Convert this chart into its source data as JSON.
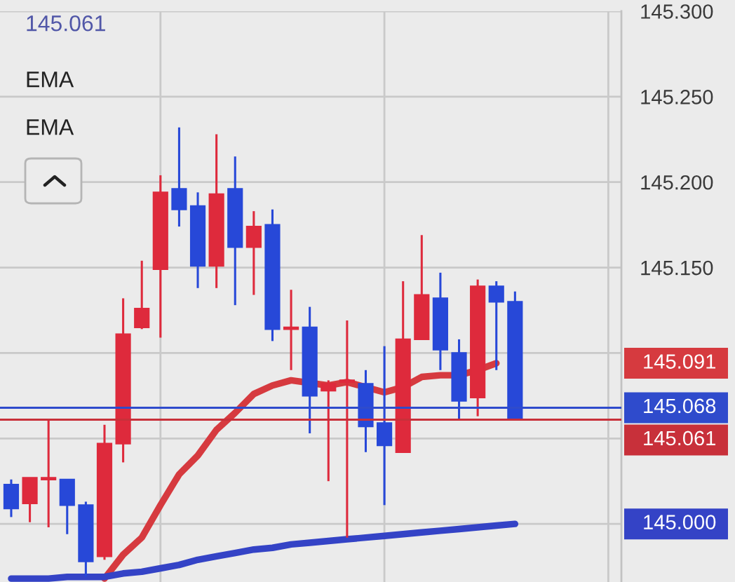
{
  "chart_data": {
    "type": "candlestick",
    "categories": [
      null,
      null,
      null,
      null,
      null,
      null,
      null,
      null,
      null,
      null,
      null,
      null,
      null,
      null,
      null,
      null,
      null,
      null,
      null,
      null,
      null,
      null,
      null,
      null,
      null,
      null,
      null,
      null
    ],
    "ohlc": [
      [
        145.023,
        145.026,
        145.004,
        145.009
      ],
      [
        145.012,
        145.027,
        145.001,
        145.027
      ],
      [
        145.026,
        145.061,
        144.998,
        145.027
      ],
      [
        145.026,
        145.026,
        144.994,
        145.011
      ],
      [
        145.011,
        145.013,
        144.969,
        144.978
      ],
      [
        144.981,
        145.058,
        144.979,
        145.047
      ],
      [
        145.047,
        145.132,
        145.036,
        145.111
      ],
      [
        145.115,
        145.154,
        145.114,
        145.126
      ],
      [
        145.149,
        145.204,
        145.109,
        145.194
      ],
      [
        145.196,
        145.232,
        145.174,
        145.184
      ],
      [
        145.186,
        145.194,
        145.138,
        145.151
      ],
      [
        145.151,
        145.228,
        145.138,
        145.193
      ],
      [
        145.196,
        145.215,
        145.128,
        145.162
      ],
      [
        145.162,
        145.183,
        145.134,
        145.174
      ],
      [
        145.175,
        145.184,
        145.107,
        145.114
      ],
      [
        145.114,
        145.137,
        145.09,
        145.115
      ],
      [
        145.115,
        145.127,
        145.053,
        145.075
      ],
      [
        145.078,
        145.084,
        145.025,
        145.082
      ],
      [
        145.083,
        145.119,
        144.992,
        145.084
      ],
      [
        145.082,
        145.09,
        145.042,
        145.057
      ],
      [
        145.059,
        145.104,
        145.011,
        145.046
      ],
      [
        145.042,
        145.142,
        145.042,
        145.108
      ],
      [
        145.108,
        145.169,
        145.108,
        145.134
      ],
      [
        145.132,
        145.147,
        145.09,
        145.102
      ],
      [
        145.1,
        145.108,
        145.061,
        145.072
      ],
      [
        145.074,
        145.143,
        145.063,
        145.139
      ],
      [
        145.139,
        145.142,
        145.09,
        145.13
      ],
      [
        145.13,
        145.136,
        145.061,
        145.061
      ]
    ],
    "colors": [
      "#2748d8",
      "#de2a3c",
      "#de2a3c",
      "#2748d8",
      "#2748d8",
      "#de2a3c",
      "#de2a3c",
      "#de2a3c",
      "#de2a3c",
      "#2748d8",
      "#2748d8",
      "#de2a3c",
      "#2748d8",
      "#de2a3c",
      "#2748d8",
      "#de2a3c",
      "#2748d8",
      "#de2a3c",
      "#de2a3c",
      "#2748d8",
      "#2748d8",
      "#de2a3c",
      "#de2a3c",
      "#2748d8",
      "#2748d8",
      "#de2a3c",
      "#2748d8",
      "#2748d8"
    ],
    "series": [
      {
        "type": "line",
        "color": "#d63a3f",
        "values": [
          null,
          null,
          null,
          null,
          null,
          144.968,
          144.982,
          144.992,
          145.011,
          145.029,
          145.04,
          145.055,
          145.065,
          145.076,
          145.081,
          145.084,
          null,
          145.081,
          145.083,
          null,
          145.077,
          145.08,
          145.086,
          145.087,
          145.087,
          145.09,
          145.094,
          null
        ]
      },
      {
        "type": "line",
        "color": "#3443c6",
        "values": [
          144.968,
          144.968,
          144.968,
          144.969,
          144.969,
          144.969,
          144.971,
          144.972,
          144.974,
          144.976,
          144.979,
          144.981,
          144.983,
          144.985,
          144.986,
          144.988,
          144.989,
          144.99,
          144.991,
          144.992,
          144.993,
          144.994,
          144.995,
          144.996,
          144.997,
          144.998,
          144.999,
          145.0
        ]
      }
    ],
    "ylim": [
      144.966,
      145.3
    ],
    "yticks": [
      {
        "value": 145.0,
        "label": null
      },
      {
        "value": 145.05,
        "label": null
      },
      {
        "value": 145.1,
        "label": null
      },
      {
        "value": 145.15,
        "label": "145.150"
      },
      {
        "value": 145.2,
        "label": "145.200"
      },
      {
        "value": 145.25,
        "label": "145.250"
      },
      {
        "value": 145.3,
        "label": "145.300"
      }
    ],
    "tick_labels": "y",
    "grid": true,
    "ref_lines": [
      {
        "axis": "y",
        "value": 145.068,
        "label": "145.068",
        "color": "#2f4bcc"
      },
      {
        "axis": "y",
        "value": 145.061,
        "label": "145.061",
        "color": "#c8303a"
      }
    ],
    "annotations": [
      "145.061",
      "EMA",
      "EMA",
      "145.091",
      "145.000"
    ]
  }
}
